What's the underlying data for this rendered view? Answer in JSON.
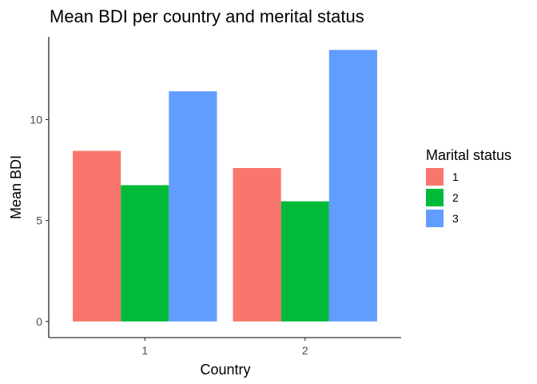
{
  "chart_data": {
    "type": "bar",
    "title": "Mean BDI per country and merital status",
    "xlabel": "Country",
    "ylabel": "Mean BDI",
    "categories": [
      "1",
      "2"
    ],
    "series": [
      {
        "name": "1",
        "color": "#F8766D",
        "values": [
          8.45,
          7.6
        ]
      },
      {
        "name": "2",
        "color": "#00BA38",
        "values": [
          6.75,
          5.95
        ]
      },
      {
        "name": "3",
        "color": "#619CFF",
        "values": [
          11.4,
          13.45
        ]
      }
    ],
    "ylim": [
      -0.8,
      14.1
    ],
    "yticks": [
      0,
      5,
      10
    ],
    "legend": {
      "title": "Marital status",
      "position": "right"
    },
    "grid": false
  }
}
